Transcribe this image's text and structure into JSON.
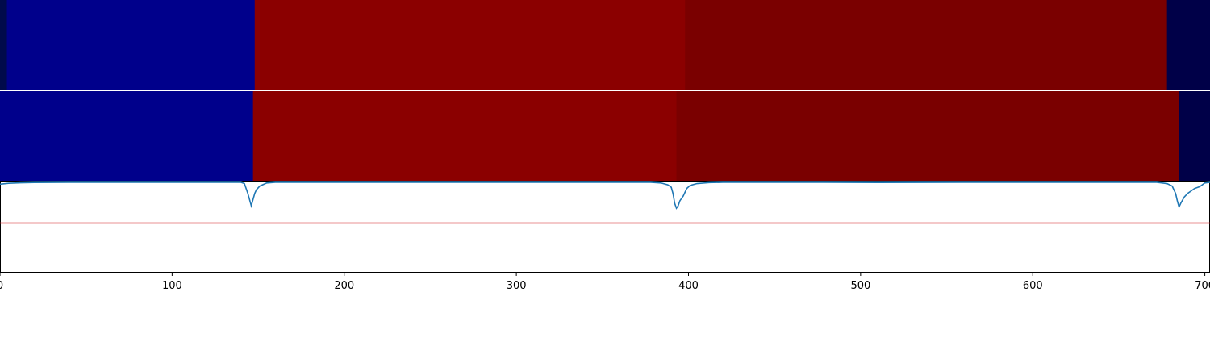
{
  "chart_data": {
    "type": "segmentation",
    "x_range": [
      0,
      703
    ],
    "xticks": [
      0,
      100,
      200,
      300,
      400,
      500,
      600,
      700
    ],
    "tick_labels": [
      "0",
      "100",
      "200",
      "300",
      "400",
      "500",
      "600",
      "700"
    ],
    "colors": {
      "line": "#1f77b4",
      "threshold": "#d62728",
      "axis": "#000000",
      "separator": "#ffffff"
    },
    "rows": [
      {
        "segments": [
          {
            "start": 0,
            "end": 4,
            "color": "#000a4a"
          },
          {
            "start": 4,
            "end": 148,
            "color": "#00008b"
          },
          {
            "start": 148,
            "end": 398,
            "color": "#8b0000"
          },
          {
            "start": 398,
            "end": 678,
            "color": "#7a0000"
          },
          {
            "start": 678,
            "end": 703,
            "color": "#000048"
          }
        ]
      },
      {
        "segments": [
          {
            "start": 0,
            "end": 147,
            "color": "#00008b"
          },
          {
            "start": 147,
            "end": 393,
            "color": "#8b0000"
          },
          {
            "start": 393,
            "end": 685,
            "color": "#7a0000"
          },
          {
            "start": 685,
            "end": 703,
            "color": "#000048"
          }
        ]
      }
    ],
    "curve": {
      "y_range": [
        0,
        1
      ],
      "threshold": 0.34,
      "points": [
        [
          0,
          0.97
        ],
        [
          5,
          0.985
        ],
        [
          12,
          0.993
        ],
        [
          20,
          0.997
        ],
        [
          40,
          1.0
        ],
        [
          140,
          1.0
        ],
        [
          142,
          0.98
        ],
        [
          143,
          0.9
        ],
        [
          144,
          0.82
        ],
        [
          145,
          0.72
        ],
        [
          146,
          0.62
        ],
        [
          147,
          0.72
        ],
        [
          148,
          0.82
        ],
        [
          149,
          0.88
        ],
        [
          151,
          0.94
        ],
        [
          155,
          0.99
        ],
        [
          160,
          1.0
        ],
        [
          378,
          1.0
        ],
        [
          384,
          0.99
        ],
        [
          388,
          0.96
        ],
        [
          390,
          0.92
        ],
        [
          391,
          0.82
        ],
        [
          392,
          0.66
        ],
        [
          393,
          0.58
        ],
        [
          394,
          0.62
        ],
        [
          395,
          0.7
        ],
        [
          397,
          0.78
        ],
        [
          398,
          0.84
        ],
        [
          399,
          0.9
        ],
        [
          401,
          0.95
        ],
        [
          405,
          0.98
        ],
        [
          412,
          0.995
        ],
        [
          420,
          1.0
        ],
        [
          478,
          1.0
        ],
        [
          510,
          0.997
        ],
        [
          560,
          1.0
        ],
        [
          672,
          1.0
        ],
        [
          678,
          0.98
        ],
        [
          681,
          0.94
        ],
        [
          683,
          0.82
        ],
        [
          684,
          0.7
        ],
        [
          685,
          0.6
        ],
        [
          686,
          0.66
        ],
        [
          688,
          0.76
        ],
        [
          690,
          0.82
        ],
        [
          692,
          0.86
        ],
        [
          694,
          0.9
        ],
        [
          697,
          0.93
        ],
        [
          700,
          0.99
        ],
        [
          703,
          1.0
        ]
      ]
    }
  }
}
